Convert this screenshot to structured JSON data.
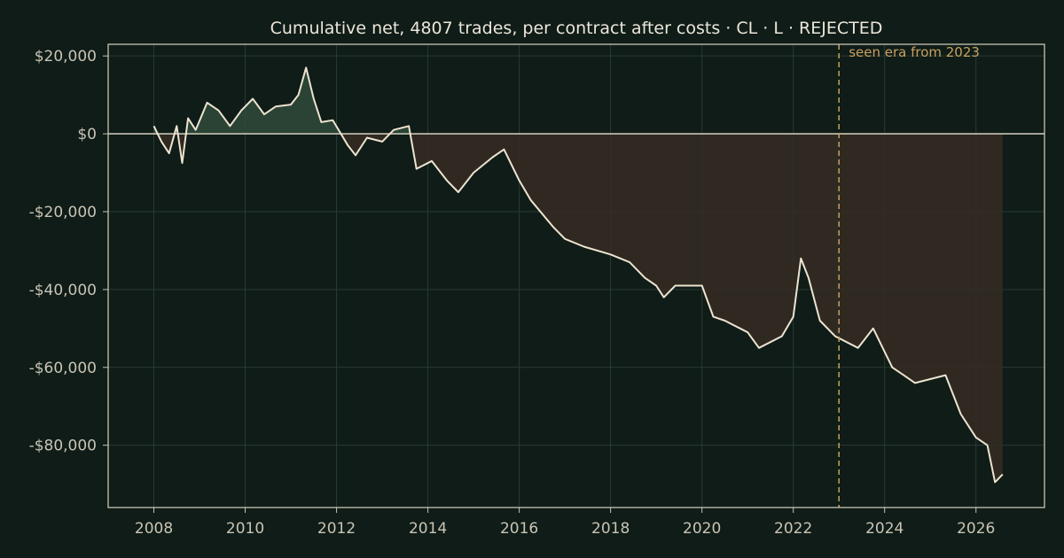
{
  "chart_data": {
    "type": "area",
    "title": "Cumulative net, 4807 trades, per contract after costs  ·  CL · L · REJECTED",
    "xlabel": "",
    "ylabel": "",
    "x_range": [
      "2007-01-01",
      "2027-07-01"
    ],
    "ylim": [
      -96000,
      23000
    ],
    "x_ticks": [
      "2008",
      "2010",
      "2012",
      "2014",
      "2016",
      "2018",
      "2020",
      "2022",
      "2024",
      "2026"
    ],
    "y_ticks": [
      {
        "value": 20000,
        "label": "$20,000"
      },
      {
        "value": 0,
        "label": "$0"
      },
      {
        "value": -20000,
        "label": "-$20,000"
      },
      {
        "value": -40000,
        "label": "-$40,000"
      },
      {
        "value": -60000,
        "label": "-$60,000"
      },
      {
        "value": -80000,
        "label": "-$80,000"
      }
    ],
    "grid": true,
    "zero_line": true,
    "annotation": {
      "date": "2023-01-01",
      "label": "seen era from 2023"
    },
    "series": [
      {
        "points": [
          [
            "2008-01-01",
            2000
          ],
          [
            "2008-03-01",
            -2000
          ],
          [
            "2008-05-01",
            -5000
          ],
          [
            "2008-07-01",
            2000
          ],
          [
            "2008-08-15",
            -7500
          ],
          [
            "2008-10-01",
            4000
          ],
          [
            "2008-12-01",
            1000
          ],
          [
            "2009-03-01",
            8000
          ],
          [
            "2009-06-01",
            6000
          ],
          [
            "2009-09-01",
            2000
          ],
          [
            "2009-12-01",
            6000
          ],
          [
            "2010-03-01",
            9000
          ],
          [
            "2010-06-01",
            5000
          ],
          [
            "2010-09-01",
            7000
          ],
          [
            "2011-01-01",
            7500
          ],
          [
            "2011-03-01",
            10000
          ],
          [
            "2011-05-01",
            17000
          ],
          [
            "2011-07-01",
            9000
          ],
          [
            "2011-09-01",
            3000
          ],
          [
            "2011-12-01",
            3500
          ],
          [
            "2012-04-01",
            -3000
          ],
          [
            "2012-06-01",
            -5500
          ],
          [
            "2012-09-01",
            -1000
          ],
          [
            "2013-01-01",
            -2000
          ],
          [
            "2013-04-01",
            1000
          ],
          [
            "2013-08-01",
            2000
          ],
          [
            "2013-10-01",
            -9000
          ],
          [
            "2014-02-01",
            -7000
          ],
          [
            "2014-06-01",
            -12000
          ],
          [
            "2014-09-01",
            -15000
          ],
          [
            "2015-01-01",
            -10000
          ],
          [
            "2015-06-01",
            -6000
          ],
          [
            "2015-09-01",
            -4000
          ],
          [
            "2016-01-01",
            -12000
          ],
          [
            "2016-04-01",
            -17000
          ],
          [
            "2016-10-01",
            -24000
          ],
          [
            "2017-01-01",
            -27000
          ],
          [
            "2017-06-01",
            -29000
          ],
          [
            "2018-01-01",
            -31000
          ],
          [
            "2018-06-01",
            -33000
          ],
          [
            "2018-10-01",
            -37000
          ],
          [
            "2019-01-01",
            -39000
          ],
          [
            "2019-03-01",
            -42000
          ],
          [
            "2019-06-01",
            -39000
          ],
          [
            "2020-01-01",
            -39000
          ],
          [
            "2020-04-01",
            -47000
          ],
          [
            "2020-07-01",
            -48000
          ],
          [
            "2021-01-01",
            -51000
          ],
          [
            "2021-04-01",
            -55000
          ],
          [
            "2021-10-01",
            -52000
          ],
          [
            "2022-01-01",
            -47000
          ],
          [
            "2022-03-01",
            -32000
          ],
          [
            "2022-05-01",
            -37000
          ],
          [
            "2022-08-01",
            -48000
          ],
          [
            "2022-12-01",
            -52000
          ],
          [
            "2023-06-01",
            -55000
          ],
          [
            "2023-10-01",
            -50000
          ],
          [
            "2024-03-01",
            -60000
          ],
          [
            "2024-06-01",
            -62000
          ],
          [
            "2024-09-01",
            -64000
          ],
          [
            "2025-01-01",
            -63000
          ],
          [
            "2025-05-01",
            -62000
          ],
          [
            "2025-09-01",
            -72000
          ],
          [
            "2026-01-01",
            -78000
          ],
          [
            "2026-04-01",
            -80000
          ],
          [
            "2026-06-01",
            -89500
          ],
          [
            "2026-08-01",
            -87500
          ]
        ]
      }
    ],
    "colors": {
      "background": "#0f1c17",
      "line": "#ede3d0",
      "positive_fill": "#2f4a3a",
      "negative_fill": "#352b25",
      "grid": "#2b3a34",
      "axis": "#c8c3b3",
      "annotation": "#c8a060"
    }
  }
}
